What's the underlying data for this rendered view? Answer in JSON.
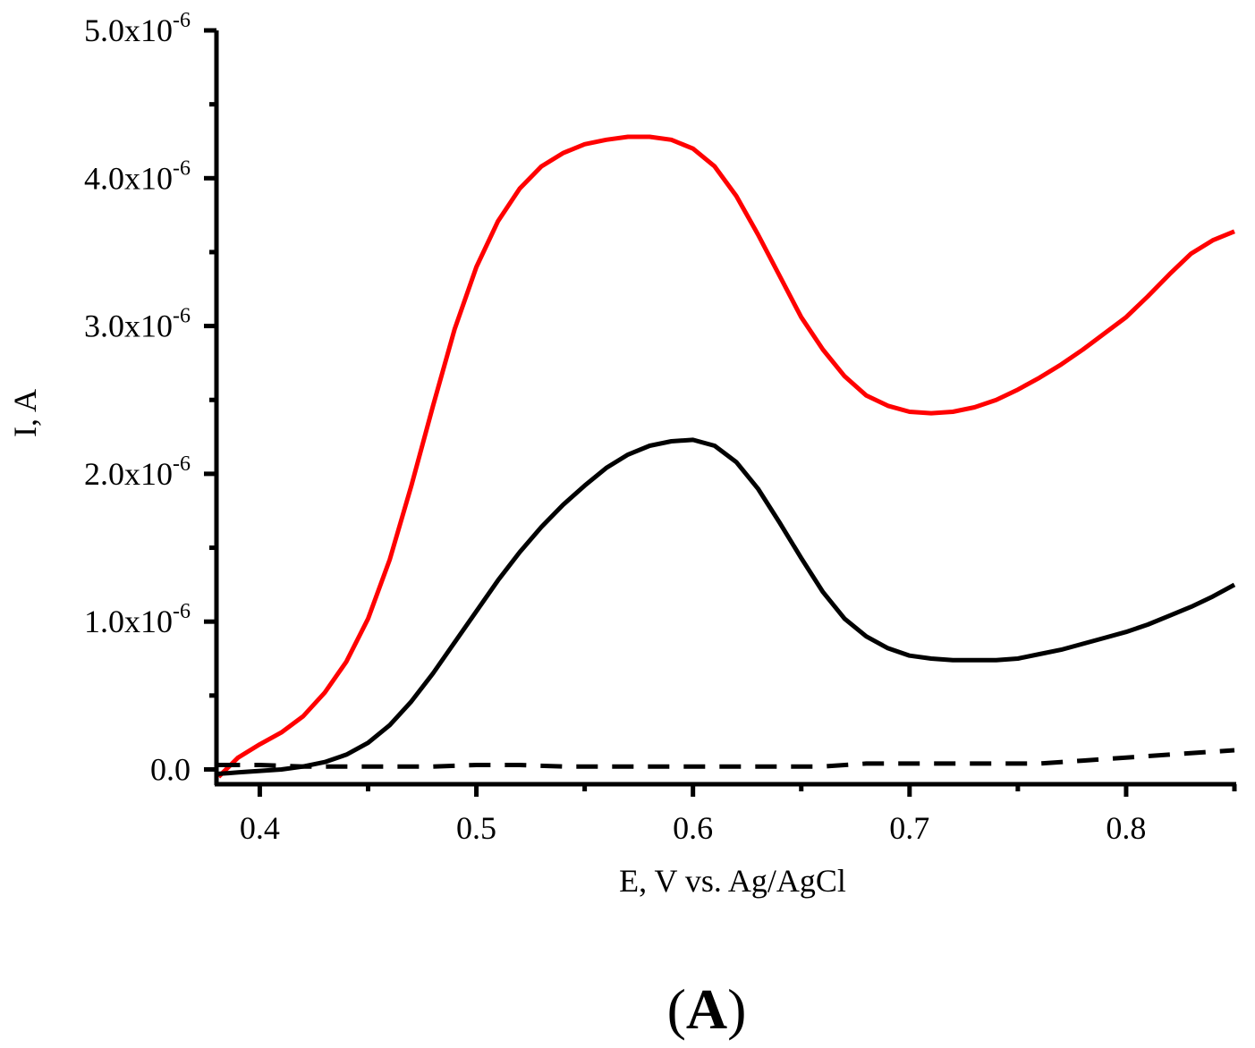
{
  "chart_data": {
    "type": "line",
    "title": "",
    "xlabel": "E, V vs. Ag/AgCl",
    "ylabel": "I, A",
    "xlim": [
      0.38,
      0.85
    ],
    "ylim": [
      -1e-07,
      5e-06
    ],
    "x_ticks": [
      0.4,
      0.5,
      0.6,
      0.7,
      0.8
    ],
    "x_tick_labels": [
      "0.4",
      "0.5",
      "0.6",
      "0.7",
      "0.8"
    ],
    "y_ticks": [
      {
        "value": 0,
        "mantissa": "0.0",
        "exp": ""
      },
      {
        "value": 1e-06,
        "mantissa": "1.0x10",
        "exp": "-6"
      },
      {
        "value": 2e-06,
        "mantissa": "2.0x10",
        "exp": "-6"
      },
      {
        "value": 3e-06,
        "mantissa": "3.0x10",
        "exp": "-6"
      },
      {
        "value": 4e-06,
        "mantissa": "4.0x10",
        "exp": "-6"
      },
      {
        "value": 5e-06,
        "mantissa": "5.0x10",
        "exp": "-6"
      }
    ],
    "grid": false,
    "series": [
      {
        "name": "red curve",
        "color": "#ff0000",
        "style": "solid",
        "x": [
          0.381,
          0.39,
          0.4,
          0.41,
          0.42,
          0.43,
          0.44,
          0.45,
          0.46,
          0.47,
          0.48,
          0.49,
          0.5,
          0.51,
          0.52,
          0.53,
          0.54,
          0.55,
          0.56,
          0.57,
          0.58,
          0.59,
          0.6,
          0.61,
          0.62,
          0.63,
          0.64,
          0.65,
          0.66,
          0.67,
          0.68,
          0.69,
          0.7,
          0.71,
          0.72,
          0.73,
          0.74,
          0.75,
          0.76,
          0.77,
          0.78,
          0.79,
          0.8,
          0.81,
          0.82,
          0.83,
          0.84,
          0.85
        ],
        "y": [
          -5e-08,
          8e-08,
          1.7e-07,
          2.5e-07,
          3.6e-07,
          5.2e-07,
          7.3e-07,
          1.02e-06,
          1.42e-06,
          1.92e-06,
          2.46e-06,
          2.98e-06,
          3.4e-06,
          3.71e-06,
          3.93e-06,
          4.08e-06,
          4.17e-06,
          4.23e-06,
          4.26e-06,
          4.28e-06,
          4.28e-06,
          4.26e-06,
          4.2e-06,
          4.08e-06,
          3.88e-06,
          3.62e-06,
          3.34e-06,
          3.06e-06,
          2.84e-06,
          2.66e-06,
          2.53e-06,
          2.46e-06,
          2.42e-06,
          2.41e-06,
          2.42e-06,
          2.45e-06,
          2.5e-06,
          2.57e-06,
          2.65e-06,
          2.74e-06,
          2.84e-06,
          2.95e-06,
          3.06e-06,
          3.2e-06,
          3.35e-06,
          3.49e-06,
          3.58e-06,
          3.64e-06
        ]
      },
      {
        "name": "black solid curve",
        "color": "#000000",
        "style": "solid",
        "x": [
          0.381,
          0.39,
          0.4,
          0.41,
          0.42,
          0.43,
          0.44,
          0.45,
          0.46,
          0.47,
          0.48,
          0.49,
          0.5,
          0.51,
          0.52,
          0.53,
          0.54,
          0.55,
          0.56,
          0.57,
          0.58,
          0.59,
          0.6,
          0.61,
          0.62,
          0.63,
          0.64,
          0.65,
          0.66,
          0.67,
          0.68,
          0.69,
          0.7,
          0.71,
          0.72,
          0.73,
          0.74,
          0.75,
          0.76,
          0.77,
          0.78,
          0.79,
          0.8,
          0.81,
          0.82,
          0.83,
          0.84,
          0.85
        ],
        "y": [
          -3e-08,
          -2e-08,
          -1e-08,
          0.0,
          2e-08,
          5e-08,
          1e-07,
          1.8e-07,
          3e-07,
          4.6e-07,
          6.5e-07,
          8.6e-07,
          1.07e-06,
          1.28e-06,
          1.47e-06,
          1.64e-06,
          1.79e-06,
          1.92e-06,
          2.04e-06,
          2.13e-06,
          2.19e-06,
          2.22e-06,
          2.23e-06,
          2.19e-06,
          2.08e-06,
          1.9e-06,
          1.67e-06,
          1.43e-06,
          1.2e-06,
          1.02e-06,
          9e-07,
          8.2e-07,
          7.7e-07,
          7.5e-07,
          7.4e-07,
          7.4e-07,
          7.4e-07,
          7.5e-07,
          7.8e-07,
          8.1e-07,
          8.5e-07,
          8.9e-07,
          9.3e-07,
          9.8e-07,
          1.04e-06,
          1.1e-06,
          1.17e-06,
          1.25e-06
        ]
      },
      {
        "name": "black dashed curve",
        "color": "#000000",
        "style": "dashed",
        "x": [
          0.381,
          0.4,
          0.42,
          0.44,
          0.46,
          0.48,
          0.5,
          0.52,
          0.54,
          0.56,
          0.58,
          0.6,
          0.62,
          0.64,
          0.66,
          0.68,
          0.7,
          0.72,
          0.74,
          0.76,
          0.78,
          0.8,
          0.82,
          0.84,
          0.85
        ],
        "y": [
          3e-08,
          3e-08,
          2e-08,
          2e-08,
          2e-08,
          2e-08,
          3e-08,
          3e-08,
          2e-08,
          2e-08,
          2e-08,
          2e-08,
          2e-08,
          2e-08,
          2e-08,
          4e-08,
          4e-08,
          4e-08,
          4e-08,
          4e-08,
          6e-08,
          8e-08,
          1e-07,
          1.2e-07,
          1.3e-07
        ]
      }
    ]
  },
  "panel_label": "(A)",
  "panel_label_parts": {
    "open": "(",
    "letter": "A",
    "close": ")"
  }
}
